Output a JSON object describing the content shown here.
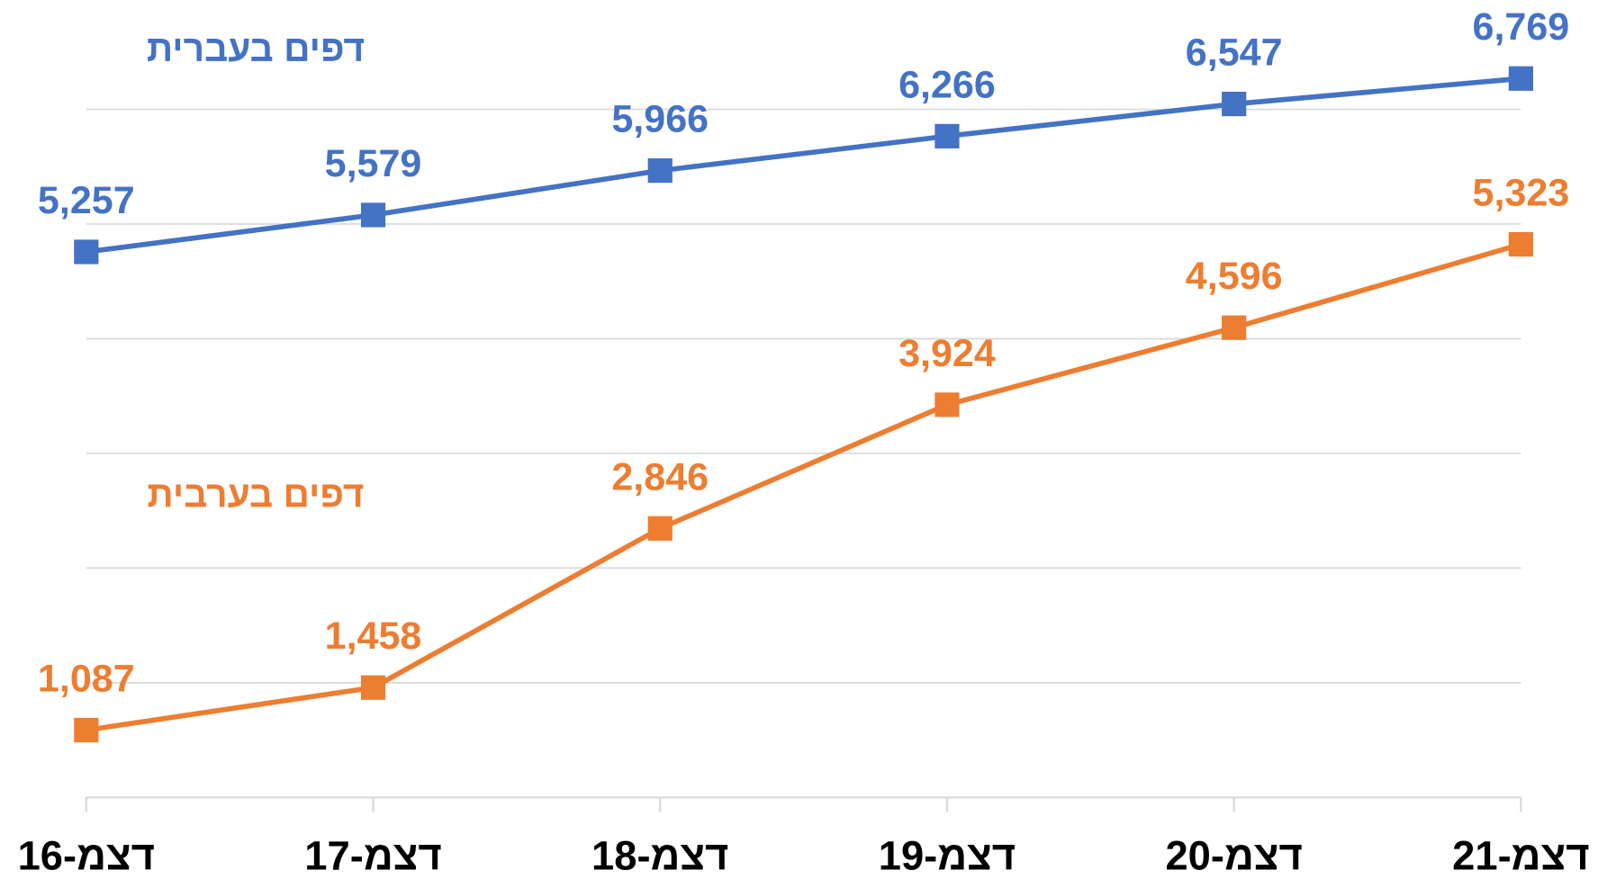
{
  "chart_data": {
    "type": "line",
    "categories": [
      "דצמ-16",
      "דצמ-17",
      "דצמ-18",
      "דצמ-19",
      "דצמ-20",
      "דצמ-21"
    ],
    "series": [
      {
        "name": "דפים בעברית",
        "color": "#4472c4",
        "values": [
          5257,
          5579,
          5966,
          6266,
          6547,
          6769
        ],
        "value_labels": [
          "5,257",
          "5,579",
          "5,966",
          "6,266",
          "6,547",
          "6,769"
        ]
      },
      {
        "name": "דפים בערבית",
        "color": "#ed7d31",
        "values": [
          1087,
          1458,
          2846,
          3924,
          4596,
          5323
        ],
        "value_labels": [
          "1,087",
          "1,458",
          "2,846",
          "3,924",
          "4,596",
          "5,323"
        ]
      }
    ],
    "ylim": [
      500,
      7000
    ],
    "yticks": [
      500,
      1500,
      2500,
      3500,
      4500,
      5500,
      6500
    ],
    "grid": true
  }
}
